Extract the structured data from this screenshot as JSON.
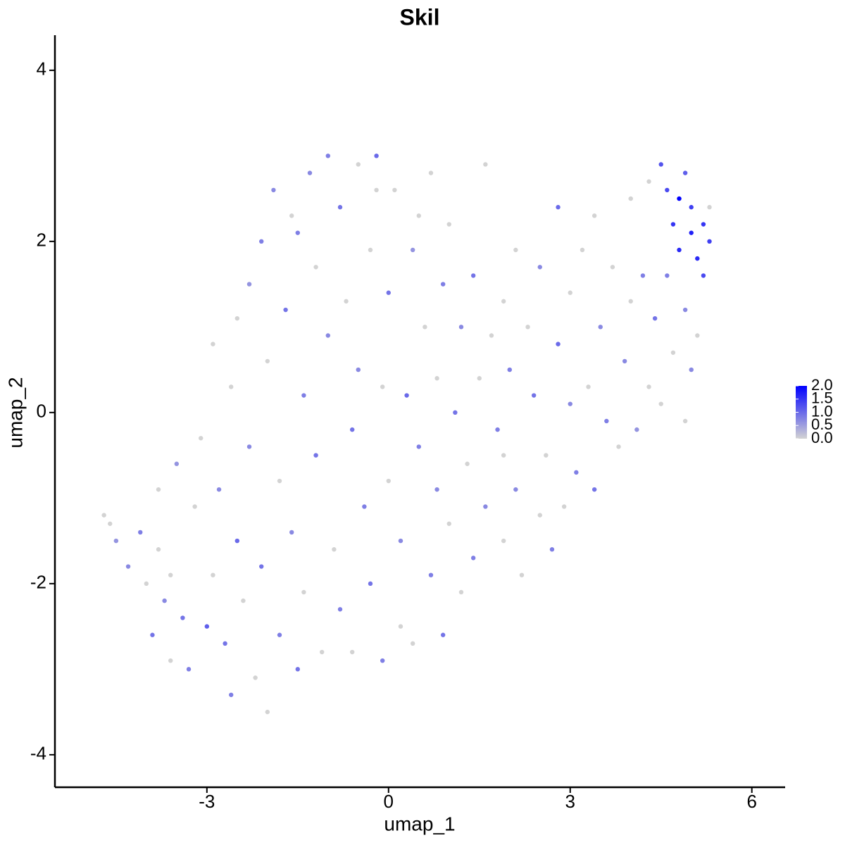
{
  "chart_data": {
    "type": "scatter",
    "title": "Skil",
    "x_label": "umap_1",
    "y_label": "umap_2",
    "xlim": [
      -5.51,
      6.55
    ],
    "ylim": [
      -4.38,
      4.41
    ],
    "xticks": [
      -3,
      0,
      3,
      6
    ],
    "yticks": [
      -4,
      -2,
      0,
      2,
      4
    ],
    "color_low": "#d3d3d3",
    "color_high": "#0000ff",
    "color_lim": [
      0,
      2
    ],
    "color_ticks": [
      {
        "value": 0,
        "label": "0.0"
      },
      {
        "value": 0.5,
        "label": "0.5"
      },
      {
        "value": 1,
        "label": "1.0"
      },
      {
        "value": 1.5,
        "label": "1.5"
      },
      {
        "value": 2,
        "label": "2.0"
      }
    ],
    "x": [
      -4.7,
      -4.6,
      -4.5,
      -4.3,
      -4.1,
      -4.0,
      -3.9,
      -3.8,
      -3.7,
      -3.6,
      -3.5,
      -3.4,
      -3.3,
      -3.2,
      -3.1,
      -3.0,
      -2.9,
      -2.9,
      -2.8,
      -2.7,
      -2.6,
      -2.6,
      -2.5,
      -2.4,
      -2.3,
      -2.3,
      -2.2,
      -2.1,
      -2.1,
      -2.0,
      -2.0,
      -1.9,
      -1.8,
      -1.8,
      -1.7,
      -1.6,
      -1.6,
      -1.5,
      -1.4,
      -1.4,
      -1.3,
      -1.2,
      -1.2,
      -1.1,
      -1.0,
      -1.0,
      -0.9,
      -0.8,
      -0.8,
      -0.7,
      -0.6,
      -0.6,
      -0.5,
      -0.5,
      -0.4,
      -0.3,
      -0.3,
      -0.2,
      -0.1,
      -0.1,
      0.0,
      0.0,
      0.1,
      0.2,
      0.2,
      0.3,
      0.4,
      0.4,
      0.5,
      0.5,
      0.6,
      0.7,
      0.7,
      0.8,
      0.8,
      0.9,
      0.9,
      1.0,
      1.0,
      1.1,
      1.2,
      1.2,
      1.3,
      1.4,
      1.4,
      1.5,
      1.6,
      1.6,
      1.7,
      1.8,
      1.9,
      1.9,
      2.0,
      2.1,
      2.1,
      2.2,
      2.3,
      2.4,
      2.5,
      2.5,
      2.6,
      2.7,
      2.8,
      2.8,
      2.9,
      3.0,
      3.1,
      3.2,
      3.3,
      3.4,
      3.4,
      3.5,
      3.6,
      3.7,
      3.8,
      3.9,
      4.0,
      4.0,
      4.1,
      4.2,
      4.3,
      4.3,
      4.4,
      4.5,
      4.5,
      4.6,
      4.6,
      4.7,
      4.7,
      4.8,
      4.8,
      4.9,
      4.9,
      5.0,
      5.0,
      5.1,
      5.1,
      5.2,
      5.2,
      5.3,
      5.3,
      5.0,
      4.9,
      -3.8,
      -2.5,
      -1.5,
      -0.2,
      1.9,
      3.0,
      -3.6
    ],
    "values": [
      -1.2,
      -1.3,
      -1.5,
      -1.8,
      -1.4,
      -2.0,
      -2.6,
      -1.6,
      -2.2,
      -2.9,
      -0.6,
      -2.4,
      -3.0,
      -1.1,
      -0.3,
      -2.5,
      -1.9,
      0.8,
      -0.9,
      -2.7,
      -3.3,
      0.3,
      -1.5,
      -2.2,
      1.5,
      -0.4,
      -3.1,
      2.0,
      -1.8,
      -3.5,
      0.6,
      2.6,
      -2.6,
      -0.8,
      1.2,
      -1.4,
      2.3,
      -3.0,
      0.2,
      -2.1,
      2.8,
      1.7,
      -0.5,
      -2.8,
      3.0,
      0.9,
      -1.6,
      2.4,
      -2.3,
      1.3,
      -0.2,
      -2.8,
      2.9,
      0.5,
      -1.1,
      1.9,
      -2.0,
      3.0,
      0.3,
      -2.9,
      1.4,
      -0.8,
      2.6,
      -1.5,
      -2.5,
      0.2,
      1.9,
      -2.7,
      -0.4,
      2.3,
      1.0,
      -1.9,
      2.8,
      -0.9,
      0.4,
      -2.6,
      1.5,
      -1.3,
      2.2,
      0.0,
      -2.1,
      1.0,
      -0.6,
      1.6,
      -1.7,
      0.4,
      2.9,
      -1.1,
      0.9,
      -0.2,
      1.3,
      -1.5,
      0.5,
      1.9,
      -0.9,
      -1.9,
      1.0,
      0.2,
      1.7,
      -1.2,
      -0.5,
      -1.6,
      0.8,
      2.4,
      -1.1,
      1.4,
      -0.7,
      1.9,
      0.3,
      -0.9,
      2.3,
      1.0,
      -0.1,
      1.7,
      -0.4,
      0.6,
      1.3,
      2.5,
      -0.2,
      1.6,
      0.3,
      2.7,
      1.1,
      2.9,
      0.1,
      2.6,
      1.6,
      2.2,
      0.7,
      2.5,
      1.9,
      2.8,
      1.2,
      2.1,
      2.4,
      1.8,
      0.9,
      2.2,
      1.6,
      2.0,
      2.4,
      0.5,
      -0.1,
      -0.9,
      1.1,
      2.1,
      2.6,
      -0.5,
      0.1,
      -1.9
    ],
    "expression": [
      0,
      0,
      0.6,
      0.7,
      0.8,
      0,
      0.9,
      0,
      0.7,
      0,
      0.6,
      0.9,
      0.8,
      0,
      0,
      1.1,
      0,
      0,
      0.7,
      0.9,
      0.8,
      0,
      1.0,
      0,
      0.6,
      0.7,
      0,
      0.8,
      0.9,
      0,
      0,
      0.7,
      0.8,
      0,
      0.9,
      0.7,
      0,
      0.9,
      0.8,
      0,
      0.7,
      0,
      0.9,
      0,
      0.8,
      0.7,
      0,
      0.9,
      0.8,
      0,
      0.9,
      0,
      0,
      0.7,
      0.8,
      0,
      0.9,
      1.0,
      0,
      0.8,
      0.9,
      0,
      0,
      0.7,
      0,
      1.0,
      0.6,
      0,
      0.8,
      0,
      0,
      0.8,
      0,
      0.7,
      0,
      0.9,
      0.8,
      0,
      0,
      0.9,
      0,
      0.7,
      0,
      0.9,
      0.8,
      0,
      0,
      0.7,
      0,
      0.8,
      0,
      0,
      0.8,
      0,
      0.7,
      0,
      0,
      0.9,
      0.7,
      0,
      0,
      0.8,
      1.0,
      1.0,
      0,
      0,
      0.8,
      0,
      0,
      0.9,
      0,
      0.7,
      0.8,
      0,
      0,
      0.7,
      0,
      0,
      0.6,
      0.8,
      0,
      0,
      0.9,
      1.2,
      0,
      1.3,
      0.8,
      1.5,
      0,
      2.0,
      1.6,
      1.1,
      0.7,
      1.7,
      1.4,
      1.6,
      0,
      1.5,
      1.3,
      1.4,
      0,
      0.7,
      0,
      0,
      0,
      0.8,
      0,
      0,
      0.7,
      0
    ]
  }
}
